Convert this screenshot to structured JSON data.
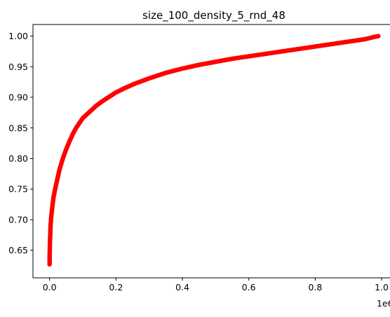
{
  "chart_data": {
    "type": "scatter",
    "title": "size_100_density_5_rnd_48",
    "xlabel": "",
    "ylabel": "",
    "x_offset_label": "1e6",
    "xlim": [
      -50000,
      1040000
    ],
    "ylim": [
      0.605,
      1.019
    ],
    "x_ticks": [
      0,
      200000,
      400000,
      600000,
      800000,
      1000000
    ],
    "x_tick_labels": [
      "0.0",
      "0.2",
      "0.4",
      "0.6",
      "0.8",
      "1.0"
    ],
    "y_ticks": [
      0.65,
      0.7,
      0.75,
      0.8,
      0.85,
      0.9,
      0.95,
      1.0
    ],
    "y_tick_labels": [
      "0.65",
      "0.70",
      "0.75",
      "0.80",
      "0.85",
      "0.90",
      "0.95",
      "1.00"
    ],
    "grid": false,
    "marker_color": "#ff0000",
    "curve_points": {
      "x": [
        0,
        500,
        1000,
        2000,
        3000,
        5000,
        8000,
        12000,
        16000,
        20000,
        25000,
        30000,
        40000,
        50000,
        60000,
        70000,
        80000,
        90000,
        100000,
        120000,
        140000,
        160000,
        180000,
        200000,
        230000,
        260000,
        300000,
        350000,
        400000,
        450000,
        500000,
        550000,
        600000,
        650000,
        700000,
        750000,
        800000,
        850000,
        900000,
        950000,
        980000,
        990000
      ],
      "y": [
        0.627,
        0.645,
        0.662,
        0.675,
        0.69,
        0.705,
        0.72,
        0.737,
        0.748,
        0.758,
        0.77,
        0.782,
        0.8,
        0.815,
        0.828,
        0.84,
        0.85,
        0.858,
        0.866,
        0.876,
        0.886,
        0.894,
        0.901,
        0.908,
        0.916,
        0.923,
        0.931,
        0.94,
        0.947,
        0.953,
        0.958,
        0.963,
        0.967,
        0.971,
        0.975,
        0.979,
        0.983,
        0.987,
        0.991,
        0.995,
        0.999,
        1.0
      ]
    }
  }
}
